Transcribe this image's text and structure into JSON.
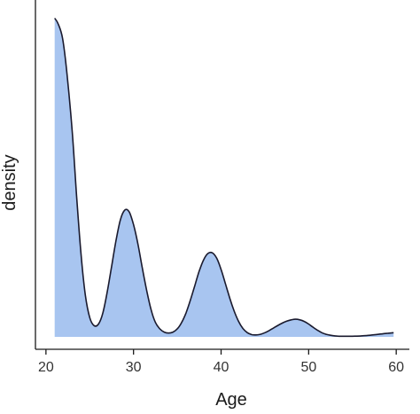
{
  "chart_data": {
    "type": "area",
    "title": "",
    "xlabel": "Age",
    "ylabel": "density",
    "xlim": [
      18.8,
      61.5
    ],
    "ylim": [
      0,
      1
    ],
    "x_ticks": [
      20,
      30,
      40,
      50,
      60
    ],
    "y_ticks": [],
    "grid": false,
    "legend": "none",
    "fill_color": "#a8c5f0",
    "line_color": "#1a1a2e",
    "series": [
      {
        "x": [
          21.0,
          21.4,
          21.9,
          22.4,
          23.0,
          23.5,
          24.0,
          24.5,
          25.0,
          25.5,
          26.0,
          26.5,
          27.0,
          27.5,
          28.0,
          28.5,
          29.0,
          29.5,
          30.0,
          30.5,
          31.0,
          31.5,
          32.0,
          32.5,
          33.0,
          33.5,
          34.0,
          34.5,
          35.0,
          35.5,
          36.0,
          36.5,
          37.0,
          37.5,
          38.0,
          38.5,
          39.0,
          39.5,
          40.0,
          40.5,
          41.0,
          41.5,
          42.0,
          42.5,
          43.0,
          43.5,
          44.0,
          44.5,
          45.0,
          45.5,
          46.0,
          46.5,
          47.0,
          47.5,
          48.0,
          48.5,
          49.0,
          49.5,
          50.0,
          50.5,
          51.0,
          51.5,
          52.0,
          52.5,
          53.0,
          53.5,
          54.0,
          54.5,
          55.0,
          56.0,
          57.0,
          58.0,
          59.0,
          59.7
        ],
        "values": [
          0.993,
          0.975,
          0.93,
          0.82,
          0.64,
          0.44,
          0.26,
          0.13,
          0.06,
          0.035,
          0.04,
          0.075,
          0.14,
          0.22,
          0.3,
          0.365,
          0.395,
          0.39,
          0.35,
          0.29,
          0.215,
          0.145,
          0.085,
          0.045,
          0.025,
          0.015,
          0.012,
          0.015,
          0.025,
          0.045,
          0.075,
          0.115,
          0.16,
          0.205,
          0.24,
          0.26,
          0.262,
          0.245,
          0.21,
          0.165,
          0.12,
          0.08,
          0.048,
          0.026,
          0.013,
          0.007,
          0.006,
          0.008,
          0.013,
          0.02,
          0.028,
          0.036,
          0.043,
          0.049,
          0.053,
          0.055,
          0.053,
          0.048,
          0.04,
          0.03,
          0.021,
          0.013,
          0.008,
          0.005,
          0.003,
          0.002,
          0.002,
          0.002,
          0.002,
          0.003,
          0.005,
          0.008,
          0.011,
          0.013
        ]
      }
    ]
  }
}
